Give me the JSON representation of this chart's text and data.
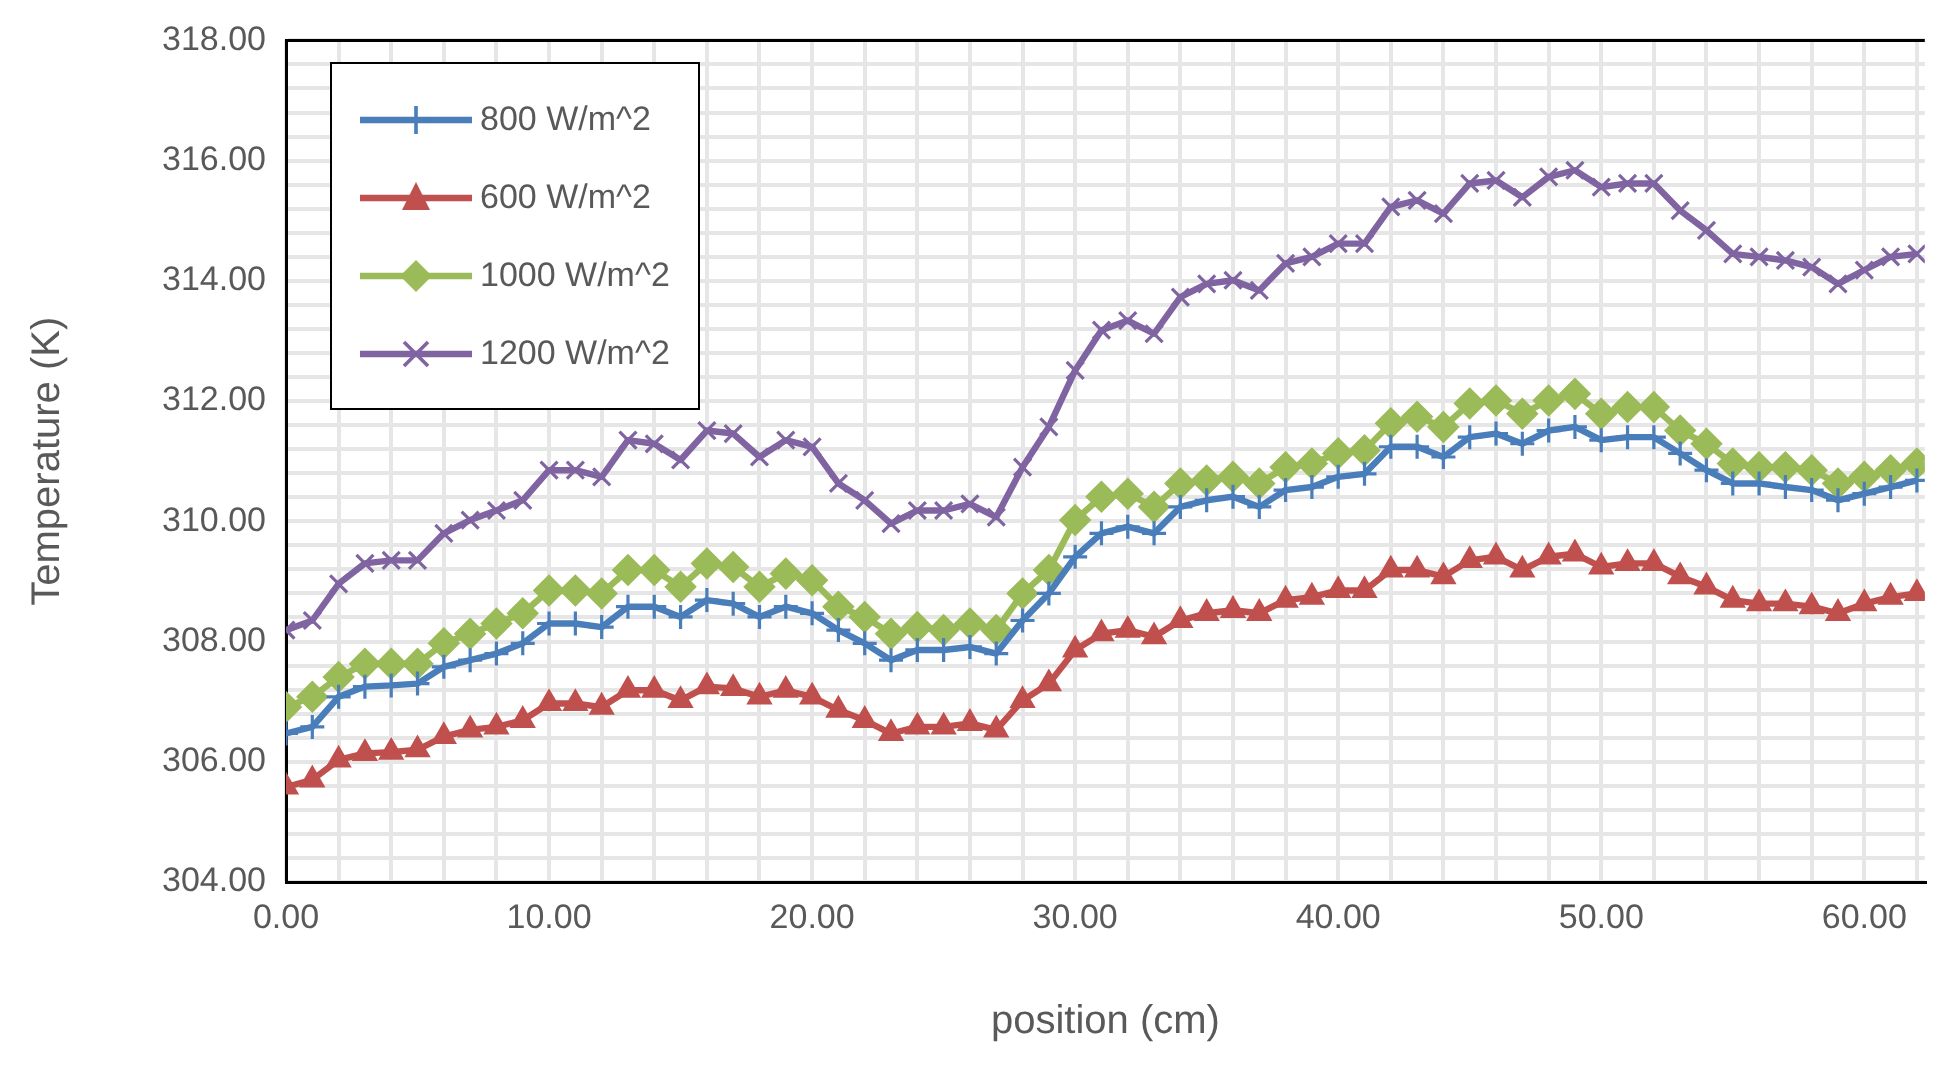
{
  "chart_data": {
    "type": "line",
    "xlabel": "position (cm)",
    "ylabel": "Temperature (K)",
    "x": [
      0,
      1,
      2,
      3,
      4,
      5,
      6,
      7,
      8,
      9,
      10,
      11,
      12,
      13,
      14,
      15,
      16,
      17,
      18,
      19,
      20,
      21,
      22,
      23,
      24,
      25,
      26,
      27,
      28,
      29,
      30,
      31,
      32,
      33,
      34,
      35,
      36,
      37,
      38,
      39,
      40,
      41,
      42,
      43,
      44,
      45,
      46,
      47,
      48,
      49,
      50,
      51,
      52,
      53,
      54,
      55,
      56,
      57,
      58,
      59,
      60,
      61,
      62
    ],
    "series": [
      {
        "name": "800 W/m^2",
        "color": "#4a7ebb",
        "marker": "cross",
        "values": [
          306.47,
          306.58,
          307.08,
          307.25,
          307.27,
          307.3,
          307.58,
          307.69,
          307.8,
          307.97,
          308.3,
          308.3,
          308.24,
          308.58,
          308.58,
          308.41,
          308.69,
          308.63,
          308.41,
          308.58,
          308.47,
          308.19,
          307.97,
          307.69,
          307.86,
          307.86,
          307.91,
          307.8,
          308.35,
          308.8,
          309.41,
          309.8,
          309.91,
          309.8,
          310.24,
          310.35,
          310.41,
          310.24,
          310.52,
          310.57,
          310.74,
          310.79,
          311.24,
          311.24,
          311.07,
          311.4,
          311.46,
          311.29,
          311.51,
          311.57,
          311.35,
          311.4,
          311.4,
          311.13,
          310.85,
          310.63,
          310.63,
          310.57,
          310.52,
          310.35,
          310.46,
          310.57,
          310.68
        ]
      },
      {
        "name": "600 W/m^2",
        "color": "#c0504d",
        "marker": "triangle",
        "values": [
          305.58,
          305.7,
          306.03,
          306.14,
          306.16,
          306.2,
          306.42,
          306.53,
          306.58,
          306.69,
          306.97,
          306.97,
          306.91,
          307.19,
          307.19,
          307.02,
          307.25,
          307.22,
          307.08,
          307.19,
          307.08,
          306.86,
          306.69,
          306.47,
          306.58,
          306.58,
          306.64,
          306.53,
          307.02,
          307.3,
          307.86,
          308.13,
          308.19,
          308.08,
          308.35,
          308.47,
          308.52,
          308.47,
          308.69,
          308.74,
          308.85,
          308.85,
          309.19,
          309.19,
          309.08,
          309.35,
          309.41,
          309.19,
          309.41,
          309.46,
          309.24,
          309.3,
          309.3,
          309.08,
          308.91,
          308.69,
          308.63,
          308.63,
          308.58,
          308.47,
          308.63,
          308.74,
          308.8
        ]
      },
      {
        "name": "1000 W/m^2",
        "color": "#9bbb59",
        "marker": "diamond",
        "values": [
          306.91,
          307.08,
          307.41,
          307.63,
          307.63,
          307.63,
          307.97,
          308.13,
          308.3,
          308.47,
          308.85,
          308.85,
          308.8,
          309.19,
          309.19,
          308.91,
          309.3,
          309.24,
          308.91,
          309.13,
          309.02,
          308.58,
          308.41,
          308.13,
          308.24,
          308.19,
          308.3,
          308.19,
          308.8,
          309.19,
          310.02,
          310.41,
          310.46,
          310.24,
          310.63,
          310.68,
          310.74,
          310.63,
          310.9,
          310.96,
          311.13,
          311.18,
          311.63,
          311.74,
          311.57,
          311.96,
          312.01,
          311.79,
          312.01,
          312.12,
          311.79,
          311.9,
          311.9,
          311.51,
          311.29,
          310.96,
          310.9,
          310.9,
          310.85,
          310.63,
          310.74,
          310.85,
          310.96
        ]
      },
      {
        "name": "1200 W/m^2",
        "color": "#8064a2",
        "marker": "x",
        "values": [
          308.19,
          308.35,
          308.96,
          309.3,
          309.35,
          309.35,
          309.8,
          310.02,
          310.18,
          310.35,
          310.85,
          310.85,
          310.74,
          311.35,
          311.29,
          311.02,
          311.51,
          311.46,
          311.07,
          311.35,
          311.24,
          310.63,
          310.35,
          309.96,
          310.18,
          310.18,
          310.29,
          310.07,
          310.9,
          311.57,
          312.51,
          313.18,
          313.34,
          313.12,
          313.73,
          313.95,
          314.01,
          313.84,
          314.29,
          314.4,
          314.62,
          314.62,
          315.23,
          315.34,
          315.12,
          315.62,
          315.67,
          315.39,
          315.73,
          315.84,
          315.56,
          315.62,
          315.62,
          315.17,
          314.84,
          314.45,
          314.4,
          314.34,
          314.23,
          313.95,
          314.18,
          314.4,
          314.45
        ]
      }
    ],
    "xlim": [
      0,
      62.3
    ],
    "xticks": [
      {
        "value": 0,
        "label": "0.00"
      },
      {
        "value": 2,
        "label": null
      },
      {
        "value": 4,
        "label": null
      },
      {
        "value": 6,
        "label": null
      },
      {
        "value": 8,
        "label": null
      },
      {
        "value": 10,
        "label": "10.00"
      },
      {
        "value": 12,
        "label": null
      },
      {
        "value": 14,
        "label": null
      },
      {
        "value": 16,
        "label": null
      },
      {
        "value": 18,
        "label": null
      },
      {
        "value": 20,
        "label": "20.00"
      },
      {
        "value": 22,
        "label": null
      },
      {
        "value": 24,
        "label": null
      },
      {
        "value": 26,
        "label": null
      },
      {
        "value": 28,
        "label": null
      },
      {
        "value": 30,
        "label": "30.00"
      },
      {
        "value": 32,
        "label": null
      },
      {
        "value": 34,
        "label": null
      },
      {
        "value": 36,
        "label": null
      },
      {
        "value": 38,
        "label": null
      },
      {
        "value": 40,
        "label": "40.00"
      },
      {
        "value": 42,
        "label": null
      },
      {
        "value": 44,
        "label": null
      },
      {
        "value": 46,
        "label": null
      },
      {
        "value": 48,
        "label": null
      },
      {
        "value": 50,
        "label": "50.00"
      },
      {
        "value": 52,
        "label": null
      },
      {
        "value": 54,
        "label": null
      },
      {
        "value": 56,
        "label": null
      },
      {
        "value": 58,
        "label": null
      },
      {
        "value": 60,
        "label": "60.00"
      },
      {
        "value": 62,
        "label": null
      }
    ],
    "ylim": [
      304,
      318
    ],
    "yticks": [
      {
        "value": 304,
        "label": "304.00"
      },
      {
        "value": 304.4,
        "label": null
      },
      {
        "value": 304.8,
        "label": null
      },
      {
        "value": 305.2,
        "label": null
      },
      {
        "value": 305.6,
        "label": null
      },
      {
        "value": 306,
        "label": "306.00"
      },
      {
        "value": 306.4,
        "label": null
      },
      {
        "value": 306.8,
        "label": null
      },
      {
        "value": 307.2,
        "label": null
      },
      {
        "value": 307.6,
        "label": null
      },
      {
        "value": 308,
        "label": "308.00"
      },
      {
        "value": 308.4,
        "label": null
      },
      {
        "value": 308.8,
        "label": null
      },
      {
        "value": 309.2,
        "label": null
      },
      {
        "value": 309.6,
        "label": null
      },
      {
        "value": 310,
        "label": "310.00"
      },
      {
        "value": 310.4,
        "label": null
      },
      {
        "value": 310.8,
        "label": null
      },
      {
        "value": 311.2,
        "label": null
      },
      {
        "value": 311.6,
        "label": null
      },
      {
        "value": 312,
        "label": "312.00"
      },
      {
        "value": 312.4,
        "label": null
      },
      {
        "value": 312.8,
        "label": null
      },
      {
        "value": 313.2,
        "label": null
      },
      {
        "value": 313.6,
        "label": null
      },
      {
        "value": 314,
        "label": "314.00"
      },
      {
        "value": 314.4,
        "label": null
      },
      {
        "value": 314.8,
        "label": null
      },
      {
        "value": 315.2,
        "label": null
      },
      {
        "value": 315.6,
        "label": null
      },
      {
        "value": 316,
        "label": "316.00"
      },
      {
        "value": 316.4,
        "label": null
      },
      {
        "value": 316.8,
        "label": null
      },
      {
        "value": 317.2,
        "label": null
      },
      {
        "value": 317.6,
        "label": null
      },
      {
        "value": 318,
        "label": "318.00"
      }
    ],
    "grid": true,
    "legend": "top left",
    "line_style": "solid"
  }
}
